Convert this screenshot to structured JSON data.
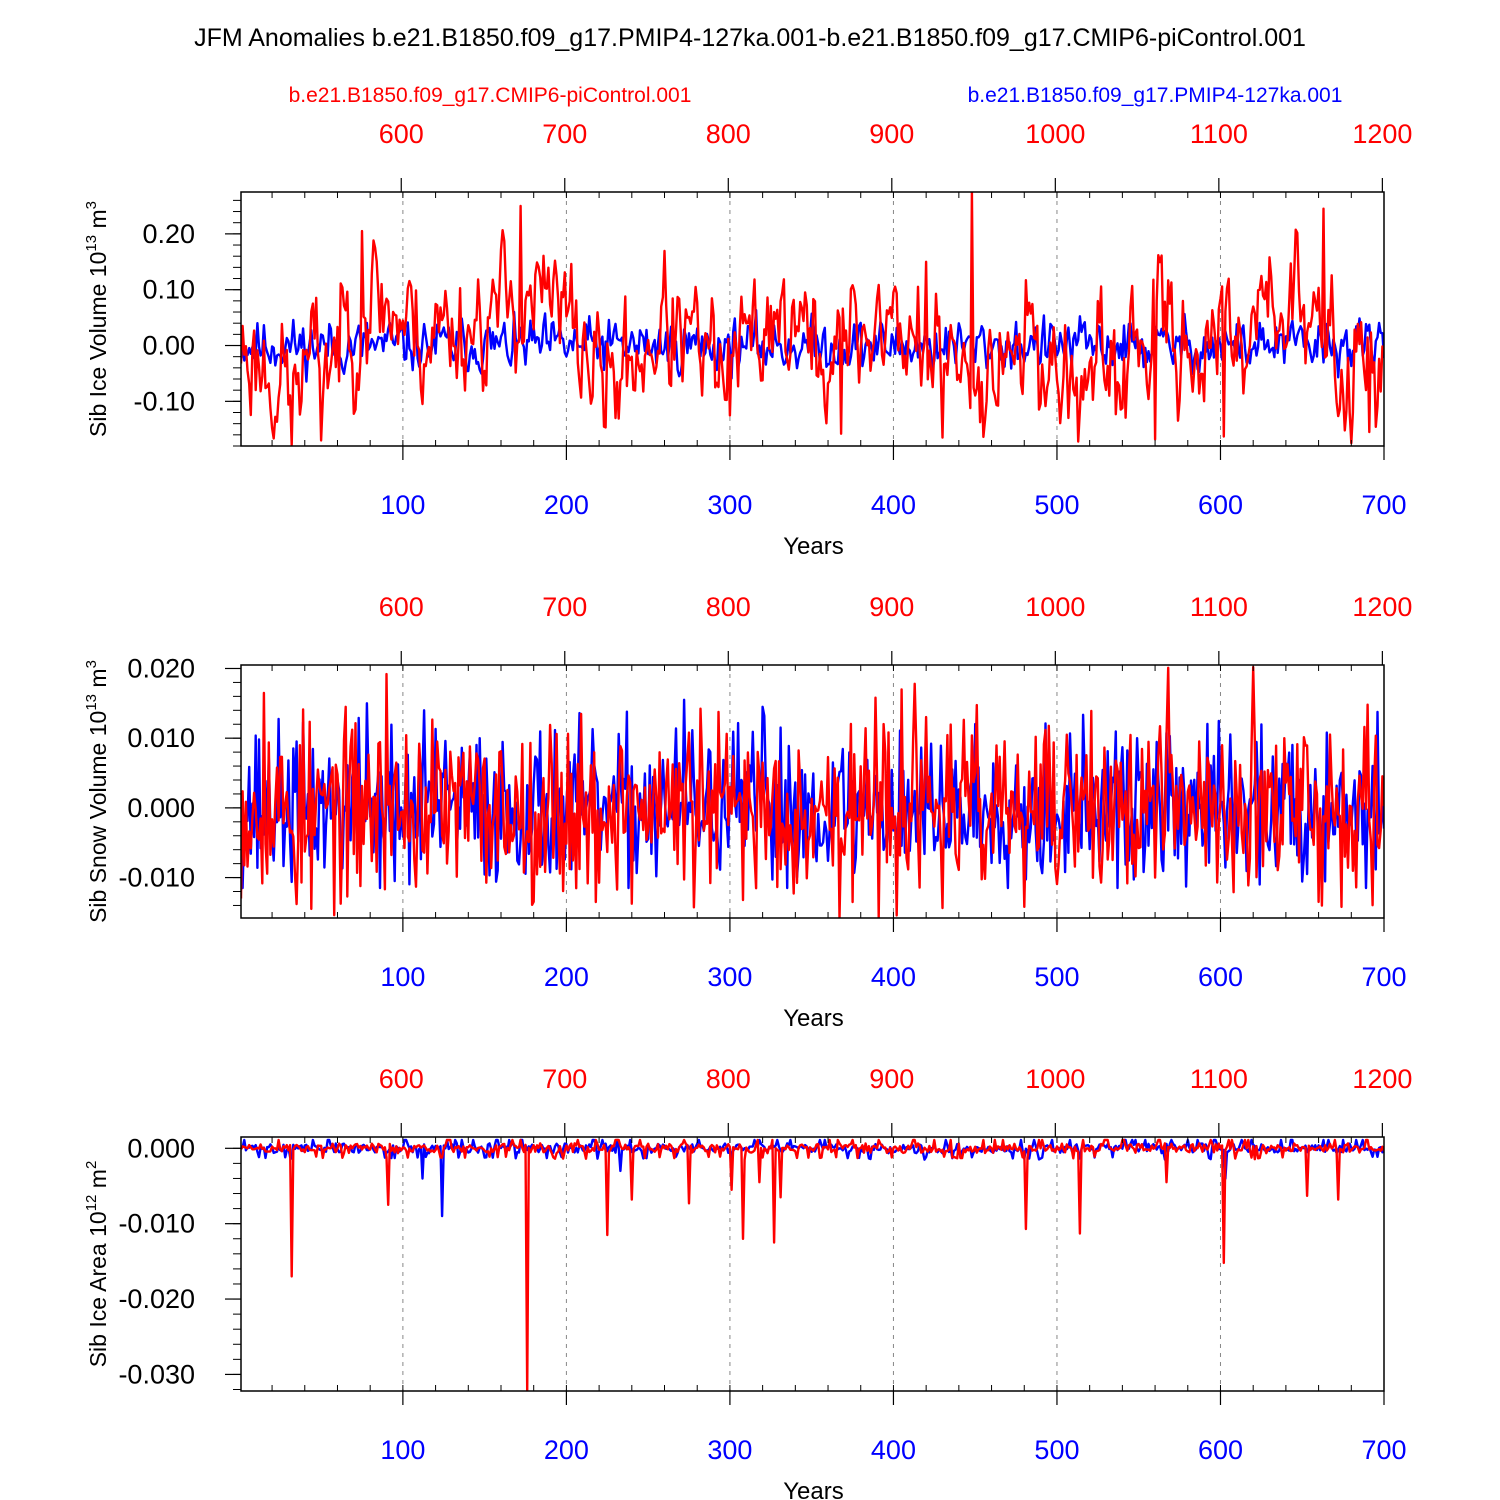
{
  "title": "JFM Anomalies b.e21.B1850.f09_g17.PMIP4-127ka.001-b.e21.B1850.f09_g17.CMIP6-piControl.001",
  "legend": {
    "control_label": "b.e21.B1850.f09_g17.CMIP6-piControl.001",
    "pmip_label": "b.e21.B1850.f09_g17.PMIP4-127ka.001"
  },
  "colors": {
    "control": "#ff0000",
    "pmip": "#0000ff",
    "axis": "#000000"
  },
  "chart_data": [
    {
      "type": "line",
      "ylabel": "Sib Ice Volume 10",
      "ylabel_exp": "13",
      "ylabel_unit": " m",
      "ylabel_unit_exp": "3",
      "xlabel": "Years",
      "xlim_bottom": [
        1,
        700
      ],
      "xlim_top": [
        502,
        1201
      ],
      "ylim": [
        -0.18,
        0.275
      ],
      "yticks": [
        0.2,
        0.1,
        0.0,
        -0.1
      ],
      "ytick_labels": [
        "0.20",
        "0.10",
        "0.00",
        "-0.10"
      ],
      "xticks_bottom": [
        100,
        200,
        300,
        400,
        500,
        600,
        700
      ],
      "xticks_top": [
        600,
        700,
        800,
        900,
        1000,
        1100,
        1200
      ],
      "series": [
        {
          "name": "b.e21.B1850.f09_g17.PMIP4-127ka.001",
          "color": "#0000ff",
          "kind": "noise",
          "seed": 11,
          "amp": 0.022,
          "rho": 0.3,
          "clip": [
            -0.08,
            0.09
          ]
        },
        {
          "name": "b.e21.B1850.f09_g17.CMIP6-piControl.001",
          "color": "#ff0000",
          "kind": "noise",
          "seed": 23,
          "amp": 0.05,
          "rho": 0.55,
          "drift": [
            [
              1,
              0.0
            ],
            [
              30,
              -0.07
            ],
            [
              60,
              0.0
            ],
            [
              80,
              0.1
            ],
            [
              110,
              0.02
            ],
            [
              160,
              0.06
            ],
            [
              175,
              0.1
            ],
            [
              205,
              0.03
            ],
            [
              225,
              -0.08
            ],
            [
              260,
              0.04
            ],
            [
              300,
              -0.07
            ],
            [
              325,
              0.07
            ],
            [
              360,
              -0.03
            ],
            [
              390,
              0.05
            ],
            [
              420,
              0.0
            ],
            [
              440,
              -0.06
            ],
            [
              480,
              0.02
            ],
            [
              500,
              -0.05
            ],
            [
              530,
              -0.08
            ],
            [
              560,
              0.03
            ],
            [
              610,
              -0.02
            ],
            [
              625,
              0.12
            ],
            [
              650,
              0.05
            ],
            [
              680,
              -0.05
            ],
            [
              700,
              0.02
            ]
          ],
          "spikes": [
            [
              32,
              -0.178
            ],
            [
              50,
              -0.17
            ],
            [
              75,
              0.205
            ],
            [
              172,
              0.25
            ],
            [
              420,
              0.15
            ],
            [
              448,
              0.275
            ],
            [
              368,
              -0.158
            ],
            [
              430,
              -0.165
            ],
            [
              560,
              -0.168
            ],
            [
              602,
              -0.163
            ],
            [
              663,
              0.245
            ],
            [
              676,
              -0.152
            ],
            [
              691,
              -0.155
            ]
          ],
          "clip": [
            -0.18,
            0.275
          ]
        }
      ]
    },
    {
      "type": "line",
      "ylabel": "Sib Snow Volume 10",
      "ylabel_exp": "13",
      "ylabel_unit": " m",
      "ylabel_unit_exp": "3",
      "xlabel": "Years",
      "xlim_bottom": [
        1,
        700
      ],
      "xlim_top": [
        502,
        1201
      ],
      "ylim": [
        -0.0158,
        0.0205
      ],
      "yticks": [
        0.02,
        0.01,
        0.0,
        -0.01
      ],
      "ytick_labels": [
        "0.020",
        "0.010",
        "0.000",
        "-0.010"
      ],
      "xticks_bottom": [
        100,
        200,
        300,
        400,
        500,
        600,
        700
      ],
      "xticks_top": [
        600,
        700,
        800,
        900,
        1000,
        1100,
        1200
      ],
      "series": [
        {
          "name": "b.e21.B1850.f09_g17.PMIP4-127ka.001",
          "color": "#0000ff",
          "kind": "noise",
          "seed": 37,
          "amp": 0.0055,
          "rho": -0.15,
          "spikes": [
            [
              78,
              0.015
            ],
            [
              95,
              -0.0105
            ],
            [
              113,
              0.014
            ],
            [
              272,
              0.0155
            ],
            [
              320,
              0.0145
            ],
            [
              665,
              0.0108
            ]
          ],
          "clip": [
            -0.0115,
            0.0155
          ]
        },
        {
          "name": "b.e21.B1850.f09_g17.CMIP6-piControl.001",
          "color": "#ff0000",
          "kind": "noise",
          "seed": 53,
          "amp": 0.0062,
          "rho": -0.1,
          "spikes": [
            [
              15,
              0.0165
            ],
            [
              44,
              -0.0145
            ],
            [
              90,
              0.0192
            ],
            [
              367,
              -0.0158
            ],
            [
              405,
              0.017
            ],
            [
              413,
              0.0178
            ],
            [
              480,
              -0.0142
            ],
            [
              568,
              0.0201
            ],
            [
              620,
              0.0202
            ],
            [
              690,
              0.0148
            ],
            [
              35,
              -0.0138
            ],
            [
              218,
              -0.0135
            ]
          ],
          "clip": [
            -0.0158,
            0.0205
          ]
        }
      ]
    },
    {
      "type": "line",
      "ylabel": "Sib Ice Area 10",
      "ylabel_exp": "12",
      "ylabel_unit": " m",
      "ylabel_unit_exp": "2",
      "xlabel": "Years",
      "xlim_bottom": [
        1,
        700
      ],
      "xlim_top": [
        502,
        1201
      ],
      "ylim": [
        -0.0322,
        0.0015
      ],
      "yticks": [
        0.0,
        -0.01,
        -0.02,
        -0.03
      ],
      "ytick_labels": [
        "0.000",
        "-0.010",
        "-0.020",
        "-0.030"
      ],
      "xticks_bottom": [
        100,
        200,
        300,
        400,
        500,
        600,
        700
      ],
      "xticks_top": [
        600,
        700,
        800,
        900,
        1000,
        1100,
        1200
      ],
      "series": [
        {
          "name": "b.e21.B1850.f09_g17.PMIP4-127ka.001",
          "color": "#0000ff",
          "kind": "clamped",
          "seed": 71,
          "amp": 0.0007,
          "rho": 0.2,
          "spikes": [
            [
              112,
              -0.004
            ],
            [
              124,
              -0.009
            ],
            [
              233,
              -0.003
            ],
            [
              603,
              -0.004
            ]
          ],
          "clip": [
            -0.009,
            0.0012
          ]
        },
        {
          "name": "b.e21.B1850.f09_g17.CMIP6-piControl.001",
          "color": "#ff0000",
          "kind": "clamped",
          "seed": 89,
          "amp": 0.0007,
          "rho": 0.2,
          "spikes": [
            [
              32,
              -0.017
            ],
            [
              91,
              -0.0075
            ],
            [
              176,
              -0.0322
            ],
            [
              225,
              -0.0115
            ],
            [
              240,
              -0.0068
            ],
            [
              275,
              -0.0073
            ],
            [
              301,
              -0.0055
            ],
            [
              308,
              -0.012
            ],
            [
              318,
              -0.0045
            ],
            [
              327,
              -0.0125
            ],
            [
              331,
              -0.0065
            ],
            [
              481,
              -0.0107
            ],
            [
              514,
              -0.0113
            ],
            [
              567,
              -0.0045
            ],
            [
              602,
              -0.0152
            ],
            [
              653,
              -0.0063
            ],
            [
              672,
              -0.0068
            ]
          ],
          "clip": [
            -0.0322,
            0.0012
          ]
        }
      ]
    }
  ]
}
